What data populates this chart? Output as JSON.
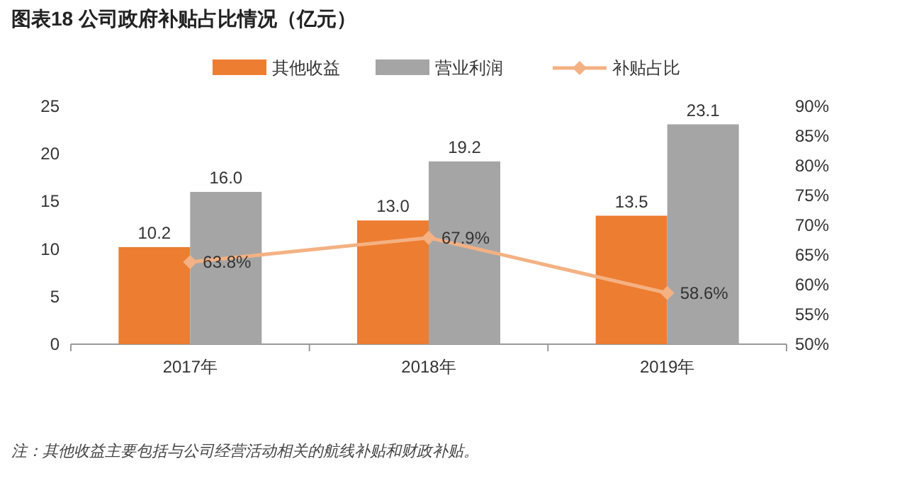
{
  "chart_data": {
    "type": "bar",
    "title": "图表18   公司政府补贴占比情况（亿元）",
    "categories": [
      "2017年",
      "2018年",
      "2019年"
    ],
    "series": [
      {
        "name": "其他收益",
        "color": "#ed7d31",
        "values": [
          10.2,
          13.0,
          13.5
        ],
        "value_labels": [
          "10.2",
          "13.0",
          "13.5"
        ]
      },
      {
        "name": "营业利润",
        "color": "#a5a5a5",
        "values": [
          16.0,
          19.2,
          23.1
        ],
        "value_labels": [
          "16.0",
          "19.2",
          "23.1"
        ]
      },
      {
        "name": "补贴占比",
        "type": "line",
        "axis": "y2",
        "color": "#f4b183",
        "values": [
          63.8,
          67.9,
          58.6
        ],
        "value_labels": [
          "63.8%",
          "67.9%",
          "58.6%"
        ]
      }
    ],
    "ylim": [
      0,
      25
    ],
    "yticks": [
      0,
      5,
      10,
      15,
      20,
      25
    ],
    "y2lim": [
      50,
      90
    ],
    "y2ticks": [
      {
        "value": 50,
        "label": "50%"
      },
      {
        "value": 55,
        "label": "55%"
      },
      {
        "value": 60,
        "label": "60%"
      },
      {
        "value": 65,
        "label": "65%"
      },
      {
        "value": 70,
        "label": "70%"
      },
      {
        "value": 75,
        "label": "75%"
      },
      {
        "value": 80,
        "label": "80%"
      },
      {
        "value": 85,
        "label": "85%"
      },
      {
        "value": 90,
        "label": "90%"
      }
    ],
    "marker": "diamond",
    "legend": "top",
    "grid": false,
    "annotations": [
      "注：其他收益主要包括与公司经营活动相关的航线补贴和财政补贴。"
    ]
  }
}
